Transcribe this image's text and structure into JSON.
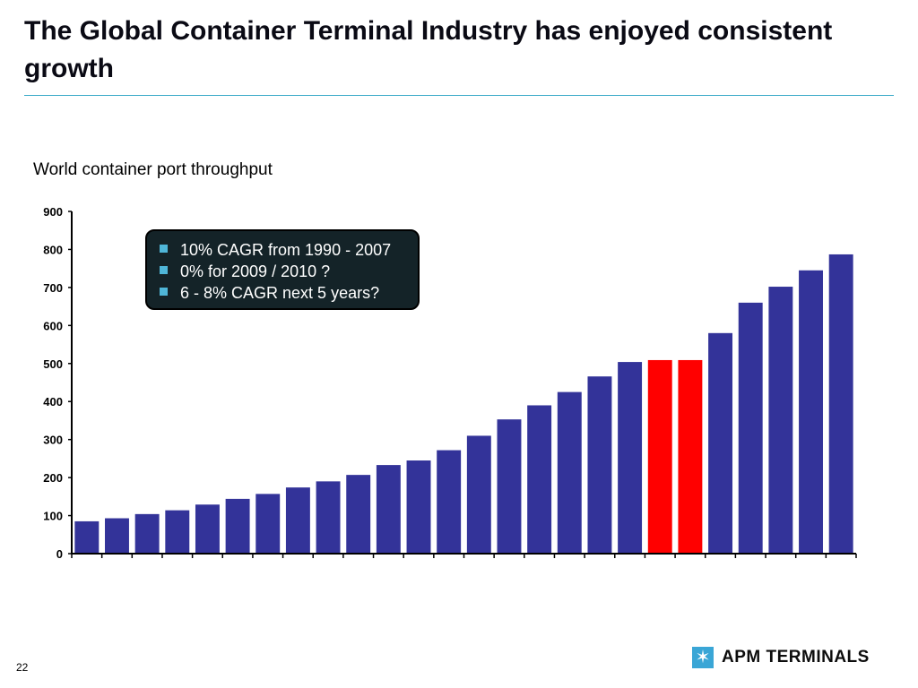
{
  "slide": {
    "title": "The Global Container Terminal Industry has enjoyed consistent growth",
    "page_number": "22"
  },
  "callout": {
    "items": [
      "10% CAGR from 1990 - 2007",
      "0% for 2009 / 2010 ?",
      "6 - 8% CAGR next 5 years?"
    ]
  },
  "logo": {
    "text": "APM TERMINALS",
    "icon": "star-icon"
  },
  "colors": {
    "bar": "#333399",
    "highlight": "#ff0000",
    "accent_rule": "#3aaac8",
    "callout_bg": "#142328",
    "logo": "#3aa6d6"
  },
  "chart_data": {
    "type": "bar",
    "title": "World container port throughput",
    "xlabel": "",
    "ylabel": "",
    "ylim": [
      0,
      900
    ],
    "yticks": [
      0,
      100,
      200,
      300,
      400,
      500,
      600,
      700,
      800,
      900
    ],
    "grid": false,
    "values": [
      85,
      93,
      104,
      114,
      129,
      144,
      157,
      174,
      190,
      207,
      233,
      245,
      272,
      310,
      353,
      390,
      425,
      466,
      504,
      509,
      509,
      580,
      660,
      702,
      745,
      787
    ],
    "highlighted": [
      19,
      20
    ]
  }
}
